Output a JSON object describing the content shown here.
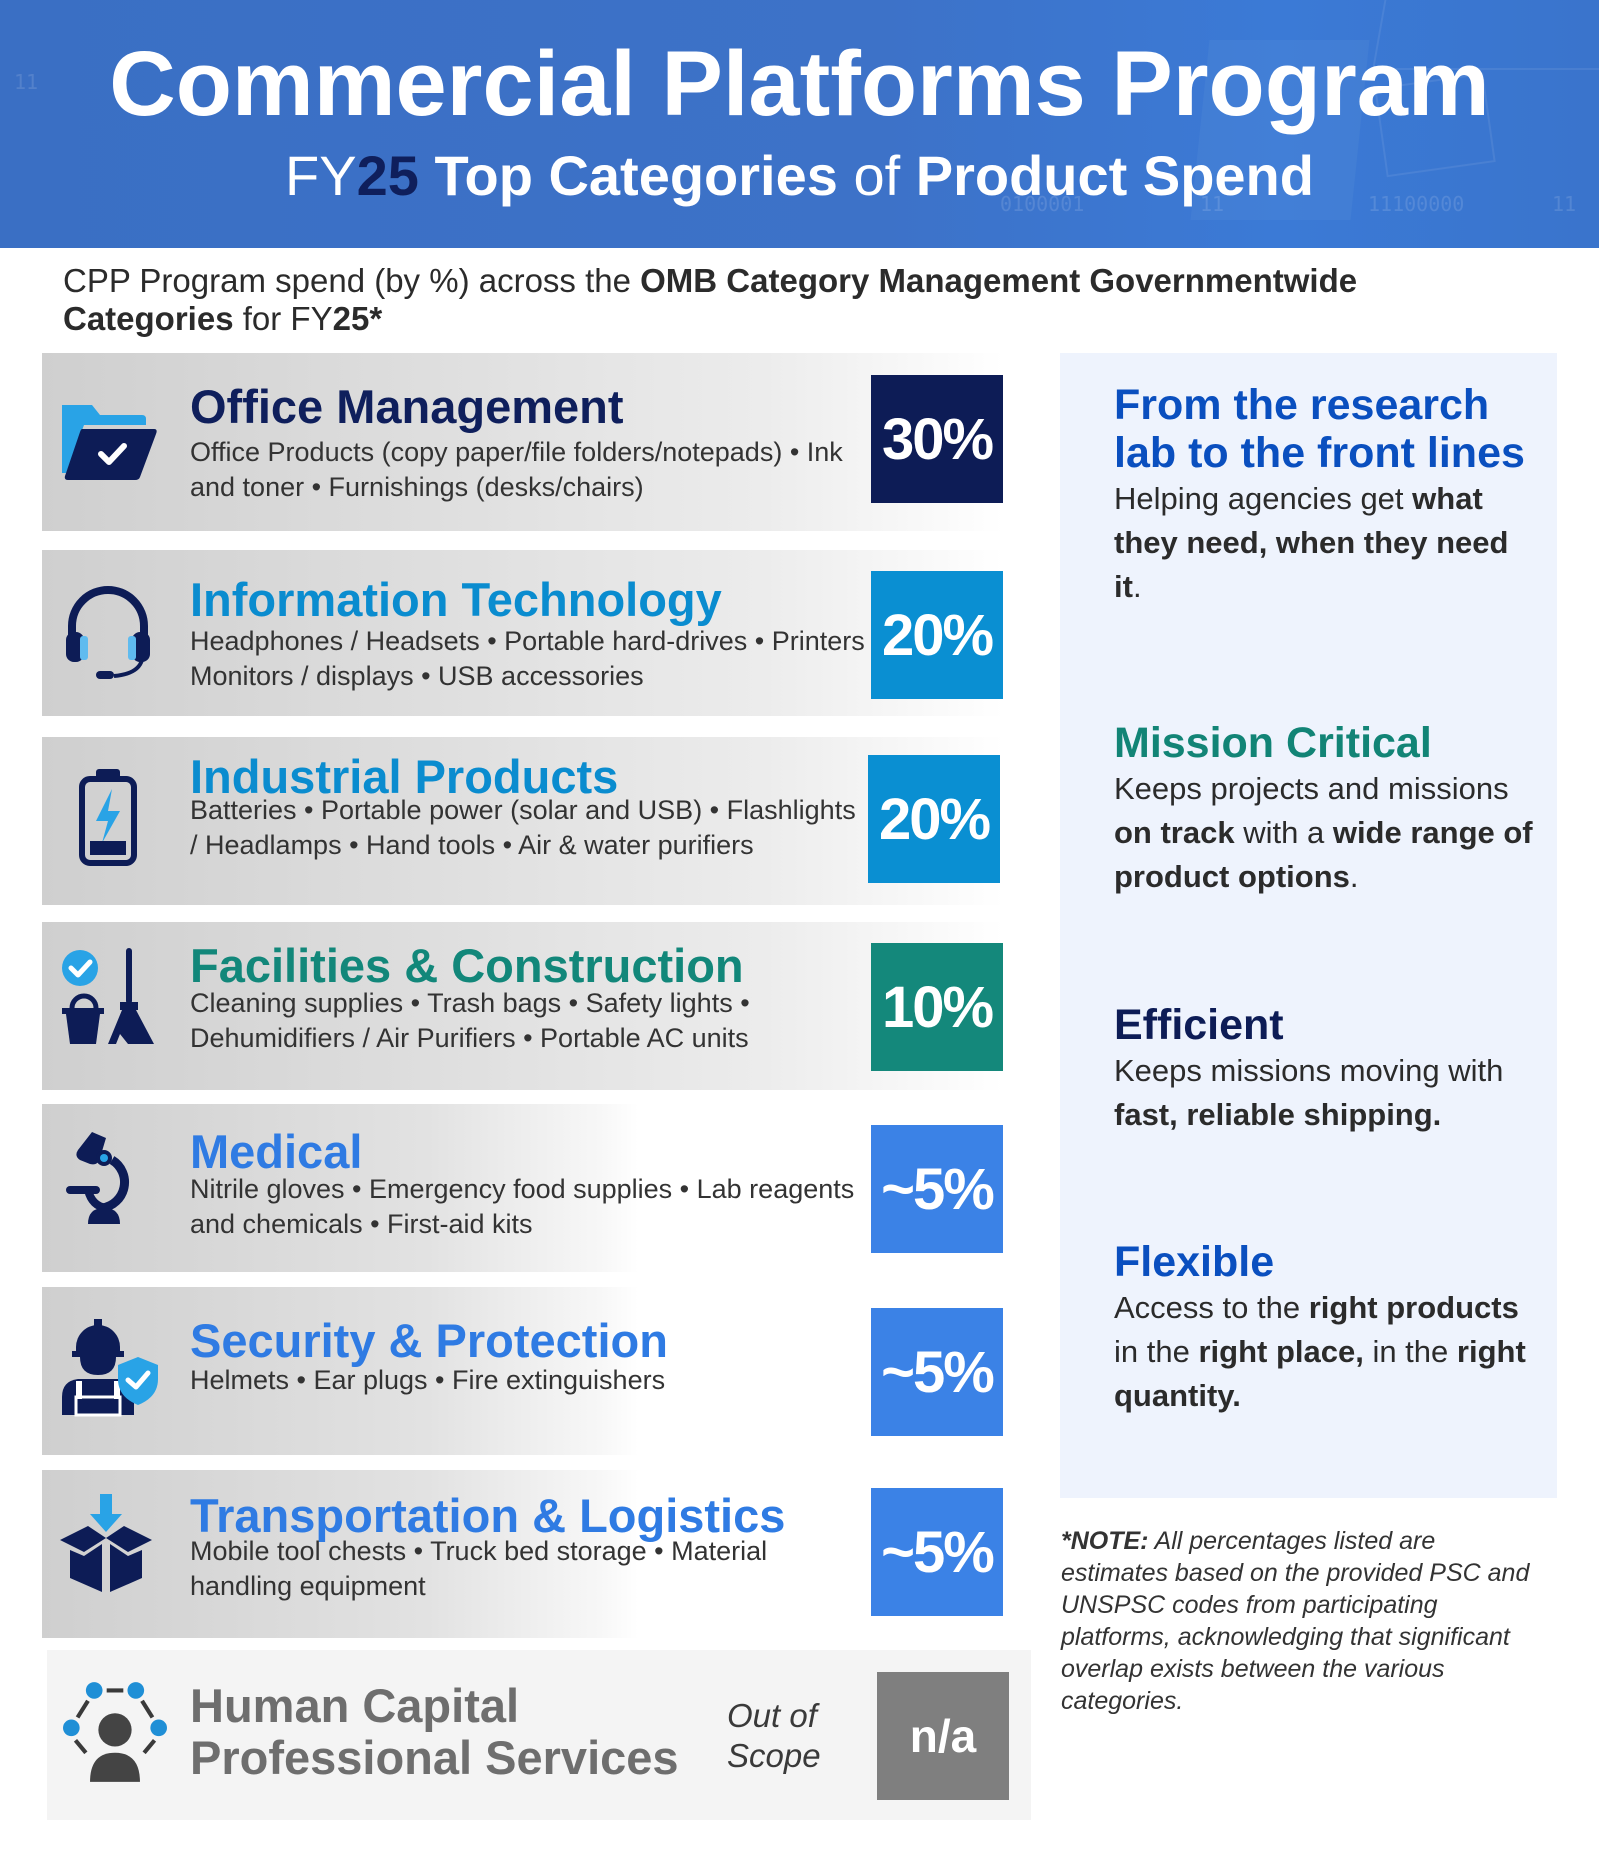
{
  "header": {
    "title": "Commercial Platforms Program",
    "subtitle_fy": "FY",
    "subtitle_year": "25",
    "subtitle_part1": " Top Categories ",
    "subtitle_of": "of",
    "subtitle_part2": " Product Spend",
    "background_color": "#3d72c8",
    "year_color": "#0f1f5c",
    "decor_binary": [
      "11",
      "0100001",
      "11",
      "11100000",
      "11"
    ]
  },
  "intro": {
    "text_plain": "CPP Program spend (by %) across the ",
    "text_bold": "OMB Category Management Governmentwide Categories",
    "text_plain2": " for FY",
    "text_bold2": "25",
    "text_suffix": "*"
  },
  "categories": [
    {
      "icon": "folder-check-icon",
      "title": "Office Management",
      "title_color": "#0f1f5c",
      "description": "Office Products (copy paper/file folders/notepads) • Ink and toner • Furnishings (desks/chairs)",
      "percent": "30%",
      "percent_color": "#0d1c56"
    },
    {
      "icon": "headset-icon",
      "title": "Information Technology",
      "title_color": "#0a8ccf",
      "description": "Headphones / Headsets • Portable hard-drives • Printers Monitors / displays • USB accessories",
      "percent": "20%",
      "percent_color": "#0a8fd2"
    },
    {
      "icon": "battery-icon",
      "title": "Industrial Products",
      "title_color": "#0a8ccf",
      "description": "Batteries • Portable power (solar and USB) • Flashlights / Headlamps • Hand tools • Air & water purifiers",
      "percent": "20%",
      "percent_color": "#0a8fd2"
    },
    {
      "icon": "cleaning-supplies-icon",
      "title": "Facilities & Construction",
      "title_color": "#12877a",
      "description": "Cleaning supplies • Trash bags • Safety lights • Dehumidifiers / Air Purifiers • Portable AC units",
      "percent": "10%",
      "percent_color": "#14887b"
    },
    {
      "icon": "microscope-icon",
      "title": "Medical",
      "title_color": "#2f7be3",
      "description": "Nitrile gloves • Emergency food supplies • Lab reagents and chemicals • First-aid kits",
      "percent": "~5%",
      "percent_color": "#3b82e6"
    },
    {
      "icon": "worker-shield-icon",
      "title": "Security & Protection",
      "title_color": "#2f7be3",
      "description": "Helmets • Ear plugs • Fire extinguishers",
      "percent": "~5%",
      "percent_color": "#3b82e6"
    },
    {
      "icon": "box-download-icon",
      "title": "Transportation & Logistics",
      "title_color": "#2f7be3",
      "description": "Mobile tool chests • Truck bed storage • Material handling equipment",
      "percent": "~5%",
      "percent_color": "#3b82e6"
    }
  ],
  "human_capital": {
    "icon": "people-network-icon",
    "title_line1": "Human Capital",
    "title_line2": "Professional Services",
    "scope_line1": "Out of",
    "scope_line2": "Scope",
    "value": "n/a",
    "value_color": "#7f7f7f"
  },
  "panel": {
    "background": "#eef3fd",
    "blocks": [
      {
        "heading": "From the research lab to the front lines",
        "heading_color": "#0a4fbf",
        "body": [
          {
            "t": "Helping agencies get ",
            "b": false
          },
          {
            "t": "what they need, when they need it",
            "b": true
          },
          {
            "t": ".",
            "b": false
          }
        ]
      },
      {
        "heading": "Mission Critical",
        "heading_color": "#128476",
        "body": [
          {
            "t": "Keeps projects and missions ",
            "b": false
          },
          {
            "t": "on track",
            "b": true
          },
          {
            "t": " with a ",
            "b": false
          },
          {
            "t": "wide range of product options",
            "b": true
          },
          {
            "t": ".",
            "b": false
          }
        ]
      },
      {
        "heading": "Efficient",
        "heading_color": "#0d1c56",
        "body": [
          {
            "t": "Keeps missions moving with ",
            "b": false
          },
          {
            "t": "fast, reliable shipping.",
            "b": true
          }
        ]
      },
      {
        "heading": "Flexible",
        "heading_color": "#0a4fbf",
        "body": [
          {
            "t": "Access to the ",
            "b": false
          },
          {
            "t": "right products",
            "b": true
          },
          {
            "t": " in the ",
            "b": false
          },
          {
            "t": "right place,",
            "b": true
          },
          {
            "t": " in the ",
            "b": false
          },
          {
            "t": "right quantity.",
            "b": true
          }
        ]
      }
    ]
  },
  "note": {
    "label": "*NOTE:",
    "text": "  All percentages listed are estimates based on the provided PSC and UNSPSC codes from participating platforms, acknowledging that significant overlap exists between the various categories."
  }
}
